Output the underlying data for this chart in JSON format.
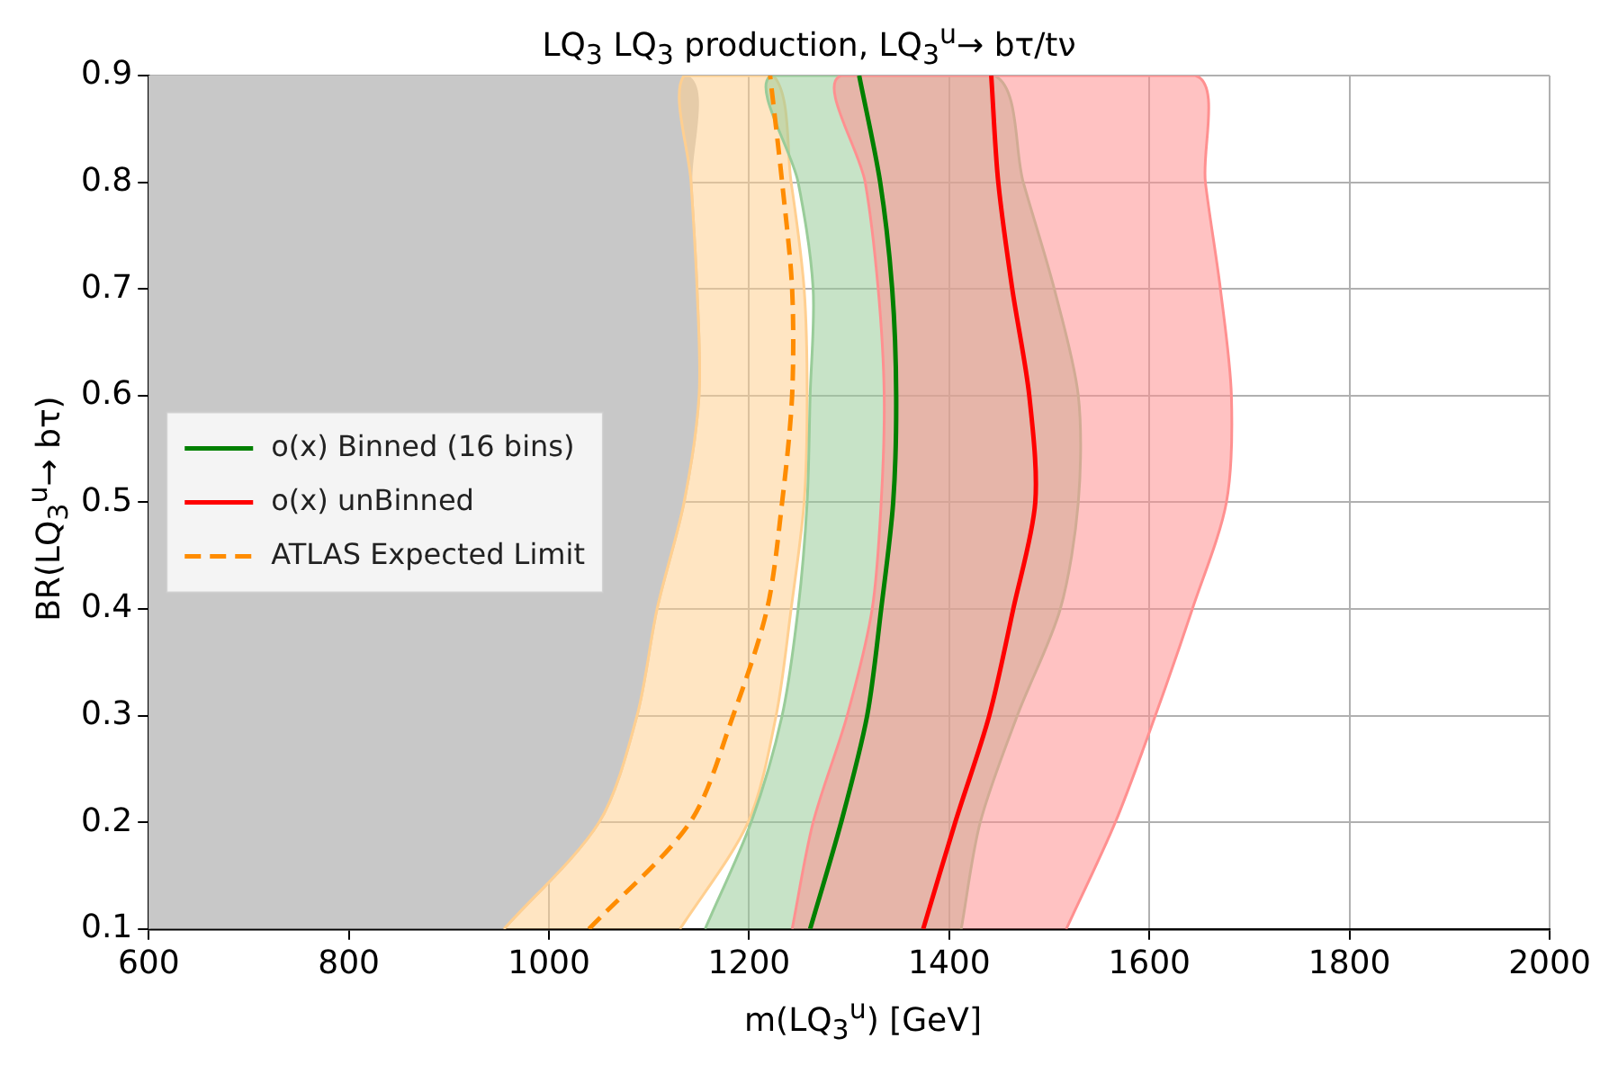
{
  "chart_data": {
    "type": "line",
    "title": "LQ$_{3}$ LQ$_{3}$ production, LQ$_{3}$$^{u}$→ bτ/tν",
    "xlabel": "m(LQ$_{3}$$^{u}$) [GeV]",
    "ylabel": "BR(LQ$_{3}$$^{u}$→ bτ)",
    "xlim": [
      600,
      2000
    ],
    "xticks": [
      600,
      800,
      1000,
      1200,
      1400,
      1600,
      1800,
      2000
    ],
    "ylim": [
      0.1,
      0.9
    ],
    "yticks": [
      0.1,
      0.2,
      0.3,
      0.4,
      0.5,
      0.6,
      0.7,
      0.8,
      0.9
    ],
    "grid": true,
    "legend": "left",
    "marker": "none",
    "series": [
      {
        "type": "area",
        "color": "#c8c8c8",
        "x": [
          955,
          1050,
          1088,
          1108,
          1135,
          1150,
          1148,
          1142,
          1135,
          600,
          600
        ],
        "values": [
          0.1,
          0.2,
          0.3,
          0.4,
          0.5,
          0.6,
          0.7,
          0.8,
          0.9,
          0.9,
          0.1
        ]
      },
      {
        "type": "area",
        "color": "#ffcf90",
        "x": [
          955,
          1050,
          1088,
          1108,
          1135,
          1150,
          1148,
          1142,
          1135,
          1224,
          1242,
          1255,
          1258,
          1255,
          1242,
          1227,
          1199,
          1131
        ],
        "values": [
          0.1,
          0.2,
          0.3,
          0.4,
          0.5,
          0.6,
          0.7,
          0.8,
          0.9,
          0.9,
          0.8,
          0.7,
          0.6,
          0.5,
          0.4,
          0.3,
          0.2,
          0.1
        ]
      },
      {
        "type": "area",
        "color": "#99cc99",
        "x": [
          1156,
          1202,
          1233,
          1249,
          1258,
          1261,
          1264,
          1249,
          1222,
          1445,
          1474,
          1505,
          1529,
          1529,
          1511,
          1468,
          1431,
          1412
        ],
        "values": [
          0.1,
          0.2,
          0.3,
          0.4,
          0.5,
          0.6,
          0.7,
          0.8,
          0.9,
          0.9,
          0.8,
          0.7,
          0.6,
          0.5,
          0.4,
          0.3,
          0.2,
          0.1
        ]
      },
      {
        "type": "area",
        "color": "#ff9090",
        "x": [
          1243,
          1264,
          1298,
          1323,
          1332,
          1335,
          1329,
          1316,
          1292,
          1646,
          1656,
          1671,
          1682,
          1677,
          1643,
          1606,
          1566,
          1517
        ],
        "values": [
          0.1,
          0.2,
          0.3,
          0.4,
          0.5,
          0.6,
          0.7,
          0.8,
          0.9,
          0.9,
          0.8,
          0.7,
          0.6,
          0.5,
          0.4,
          0.3,
          0.2,
          0.1
        ]
      },
      {
        "name": "o(x) Binned (16 bins)",
        "color": "#008000",
        "line_style": "solid",
        "x": [
          1261,
          1292,
          1318,
          1332,
          1344,
          1347,
          1343,
          1331,
          1310
        ],
        "values": [
          0.1,
          0.2,
          0.3,
          0.4,
          0.5,
          0.6,
          0.7,
          0.8,
          0.9
        ]
      },
      {
        "name": "o(x) unBinned",
        "color": "#ff0000",
        "line_style": "solid",
        "x": [
          1374,
          1406,
          1440,
          1464,
          1486,
          1480,
          1463,
          1449,
          1442
        ],
        "values": [
          0.1,
          0.2,
          0.3,
          0.4,
          0.5,
          0.6,
          0.7,
          0.8,
          0.9
        ]
      },
      {
        "name": "ATLAS Expected Limit",
        "color": "#ff8c00",
        "line_style": "dashed",
        "x": [
          1040,
          1141,
          1184,
          1218,
          1233,
          1243,
          1243,
          1233,
          1221
        ],
        "values": [
          0.1,
          0.2,
          0.3,
          0.4,
          0.5,
          0.6,
          0.7,
          0.8,
          0.9
        ]
      }
    ]
  }
}
